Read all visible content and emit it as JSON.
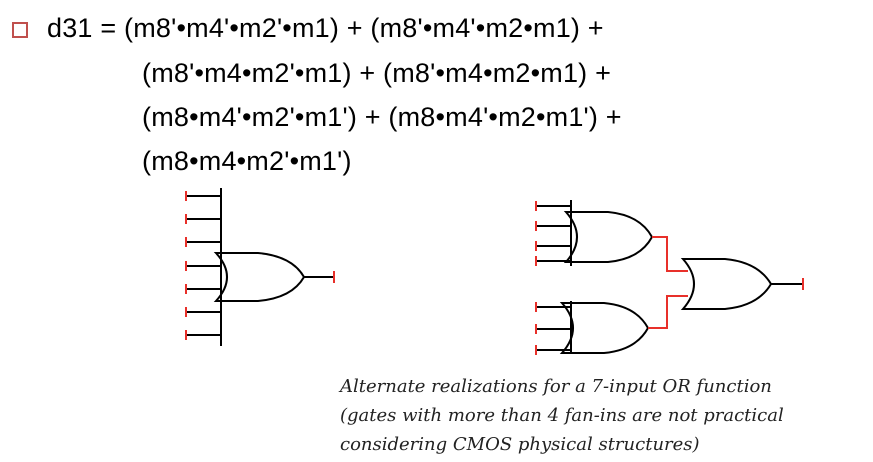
{
  "equation": {
    "line1": "d31 = (m8'•m4'•m2'•m1) + (m8'•m4'•m2•m1) +",
    "line2": "(m8'•m4•m2'•m1) + (m8'•m4•m2•m1) +",
    "line3": "(m8•m4'•m2'•m1') + (m8•m4'•m2•m1') +",
    "line4": "(m8•m4•m2'•m1')"
  },
  "caption": {
    "line1": "Alternate realizations for a 7-input OR function",
    "line2": "(gates with more than 4 fan-ins are not practical",
    "line3": "considering CMOS physical structures)"
  },
  "colors": {
    "wire": "#000000",
    "terminal": "#e8302a",
    "bullet": "#c0504d"
  }
}
